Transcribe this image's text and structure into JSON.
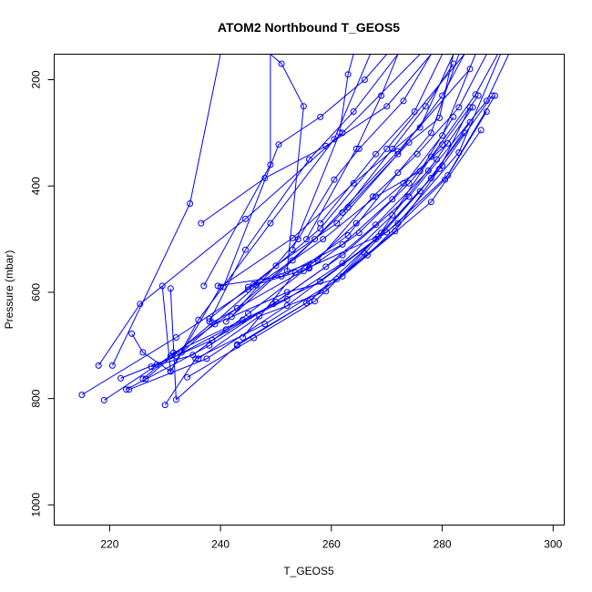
{
  "chart_data": {
    "type": "line",
    "title": "ATOM2 Northbound T_GEOS5",
    "xlabel": "T_GEOS5",
    "ylabel": "Pressure (mbar)",
    "xlim": [
      210,
      302
    ],
    "ylim": [
      1038,
      152
    ],
    "y_reversed": true,
    "xticks": [
      220,
      240,
      260,
      280,
      300
    ],
    "yticks": [
      200,
      400,
      600,
      800,
      1000
    ],
    "grid": false,
    "legend": "none",
    "series_color": "#0000ff",
    "marker": "open-circle",
    "series": [
      {
        "values": [
          [
            215.0,
            793
          ],
          [
            232.0,
            685
          ],
          [
            245.0,
            595
          ],
          [
            258.0,
            480
          ],
          [
            270.0,
            330
          ],
          [
            284.0,
            152
          ]
        ]
      },
      {
        "values": [
          [
            219.0,
            803
          ],
          [
            231.0,
            720
          ],
          [
            243.0,
            630
          ],
          [
            257.0,
            500
          ],
          [
            272.0,
            335
          ],
          [
            285.0,
            180
          ]
        ]
      },
      {
        "values": [
          [
            218.0,
            738
          ],
          [
            225.5,
            622
          ],
          [
            244.5,
            462
          ],
          [
            262.0,
            300
          ],
          [
            276.0,
            152
          ]
        ]
      },
      {
        "values": [
          [
            220.5,
            738
          ],
          [
            234.5,
            433
          ],
          [
            240.0,
            152
          ]
        ]
      },
      {
        "values": [
          [
            223.0,
            783
          ],
          [
            238.0,
            700
          ],
          [
            250.0,
            618
          ],
          [
            262.0,
            530
          ],
          [
            274.0,
            420
          ],
          [
            288.0,
            240
          ],
          [
            292.0,
            152
          ]
        ]
      },
      {
        "values": [
          [
            223.5,
            783
          ],
          [
            237.5,
            725
          ],
          [
            252.0,
            625
          ],
          [
            268.0,
            500
          ],
          [
            280.0,
            362
          ],
          [
            289.0,
            230
          ]
        ]
      },
      {
        "values": [
          [
            226.0,
            763
          ],
          [
            231.5,
            714
          ],
          [
            244.0,
            652
          ],
          [
            258.0,
            580
          ],
          [
            272.0,
            470
          ],
          [
            283.0,
            337
          ],
          [
            290.5,
            152
          ]
        ]
      },
      {
        "values": [
          [
            226.5,
            763
          ],
          [
            238.5,
            657
          ],
          [
            256.0,
            553
          ],
          [
            270.0,
            487
          ],
          [
            281.0,
            380
          ],
          [
            288.0,
            260
          ]
        ]
      },
      {
        "values": [
          [
            230.0,
            812
          ],
          [
            235.5,
            725
          ],
          [
            248.0,
            660
          ],
          [
            262.0,
            570
          ],
          [
            278.0,
            430
          ],
          [
            287.0,
            295
          ]
        ]
      },
      {
        "values": [
          [
            231.0,
            593
          ],
          [
            232.0,
            802
          ],
          [
            243.0,
            700
          ],
          [
            255.5,
            620
          ],
          [
            266.5,
            530
          ],
          [
            280.5,
            388
          ],
          [
            289.5,
            230
          ]
        ]
      },
      {
        "values": [
          [
            224.0,
            678
          ],
          [
            226.0,
            713
          ],
          [
            231.0,
            749
          ],
          [
            236.0,
            652
          ],
          [
            249.0,
            470
          ],
          [
            260.5,
            312
          ],
          [
            267.0,
            152
          ]
        ]
      },
      {
        "values": [
          [
            229.5,
            588
          ],
          [
            231.0,
            749
          ],
          [
            240.0,
            590
          ],
          [
            253.0,
            498
          ],
          [
            264.0,
            395
          ],
          [
            276.0,
            290
          ],
          [
            282.0,
            152
          ]
        ]
      },
      {
        "values": [
          [
            237.0,
            588
          ],
          [
            249.0,
            360
          ],
          [
            249.0,
            152
          ]
        ]
      },
      {
        "values": [
          [
            236.5,
            470
          ],
          [
            248.0,
            385
          ],
          [
            259.0,
            325
          ],
          [
            270.0,
            250
          ],
          [
            278.0,
            152
          ]
        ]
      },
      {
        "values": [
          [
            238.0,
            655
          ],
          [
            244.5,
            520
          ],
          [
            256.0,
            350
          ],
          [
            264.0,
            260
          ],
          [
            272.0,
            152
          ]
        ]
      },
      {
        "values": [
          [
            240.5,
            590
          ],
          [
            250.5,
            322
          ],
          [
            258.0,
            270
          ],
          [
            266.0,
            200
          ],
          [
            270.0,
            152
          ]
        ]
      },
      {
        "values": [
          [
            242.0,
            646
          ],
          [
            254.0,
            500
          ],
          [
            260.5,
            388
          ],
          [
            265.0,
            330
          ],
          [
            273.0,
            240
          ],
          [
            278.0,
            152
          ]
        ]
      },
      {
        "values": [
          [
            252.0,
            560
          ],
          [
            255.0,
            250
          ],
          [
            251.0,
            170
          ],
          [
            249.0,
            152
          ]
        ]
      },
      {
        "values": [
          [
            246.0,
            585
          ],
          [
            257.5,
            540
          ],
          [
            267.5,
            420
          ],
          [
            275.5,
            340
          ],
          [
            283.0,
            252
          ],
          [
            288.0,
            152
          ]
        ]
      },
      {
        "values": [
          [
            239.5,
            588
          ],
          [
            251.0,
            570
          ],
          [
            262.0,
            510
          ],
          [
            271.0,
            425
          ],
          [
            280.0,
            305
          ],
          [
            286.0,
            152
          ]
        ]
      },
      {
        "values": [
          [
            243.0,
            698
          ],
          [
            256.0,
            617
          ],
          [
            268.5,
            495
          ],
          [
            278.0,
            345
          ],
          [
            286.0,
            228
          ],
          [
            290.0,
            152
          ]
        ]
      },
      {
        "values": [
          [
            244.0,
            685
          ],
          [
            253.5,
            563
          ],
          [
            263.0,
            493
          ],
          [
            272.0,
            375
          ],
          [
            278.0,
            300
          ],
          [
            283.0,
            152
          ]
        ]
      },
      {
        "values": [
          [
            233.0,
            713
          ],
          [
            246.5,
            587
          ],
          [
            258.5,
            500
          ],
          [
            268.0,
            420
          ],
          [
            276.0,
            372
          ],
          [
            282.0,
            270
          ]
        ]
      },
      {
        "values": [
          [
            236.0,
            725
          ],
          [
            247.0,
            645
          ],
          [
            259.0,
            598
          ],
          [
            269.0,
            488
          ],
          [
            278.0,
            385
          ],
          [
            285.0,
            280
          ]
        ]
      },
      {
        "values": [
          [
            239.0,
            660
          ],
          [
            252.0,
            600
          ],
          [
            261.0,
            575
          ],
          [
            271.5,
            485
          ],
          [
            279.5,
            368
          ],
          [
            285.0,
            252
          ]
        ]
      },
      {
        "values": [
          [
            234.0,
            760
          ],
          [
            246.0,
            686
          ],
          [
            257.0,
            617
          ],
          [
            266.0,
            527
          ],
          [
            276.0,
            410
          ],
          [
            284.0,
            300
          ]
        ]
      },
      {
        "values": [
          [
            238.0,
            650
          ],
          [
            250.0,
            550
          ],
          [
            261.0,
            470
          ],
          [
            272.0,
            340
          ],
          [
            280.0,
            230
          ],
          [
            284.0,
            152
          ]
        ]
      },
      {
        "values": [
          [
            241.0,
            655
          ],
          [
            253.0,
            540
          ],
          [
            263.0,
            440
          ],
          [
            274.0,
            318
          ],
          [
            279.5,
            272
          ],
          [
            282.0,
            152
          ]
        ]
      },
      {
        "values": [
          [
            227.5,
            740
          ],
          [
            235.0,
            718
          ],
          [
            245.0,
            640
          ],
          [
            255.0,
            560
          ],
          [
            264.5,
            470
          ],
          [
            273.0,
            395
          ],
          [
            281.0,
            320
          ]
        ]
      },
      {
        "values": [
          [
            222.0,
            762
          ],
          [
            232.0,
            720
          ],
          [
            241.0,
            670
          ],
          [
            252.0,
            613
          ],
          [
            262.0,
            545
          ],
          [
            271.0,
            455
          ],
          [
            279.0,
            350
          ]
        ]
      },
      {
        "values": [
          [
            228.5,
            736
          ],
          [
            238.5,
            690
          ],
          [
            249.5,
            622
          ],
          [
            259.0,
            552
          ],
          [
            268.0,
            473
          ],
          [
            277.5,
            371
          ],
          [
            285.5,
            252
          ]
        ]
      },
      {
        "values": [
          [
            245.0,
            590
          ],
          [
            256.0,
            555
          ],
          [
            265.0,
            488
          ],
          [
            274.0,
            395
          ],
          [
            280.0,
            322
          ],
          [
            286.5,
            230
          ]
        ]
      },
      {
        "values": [
          [
            253.0,
            520
          ],
          [
            261.5,
            300
          ],
          [
            263.0,
            190
          ],
          [
            264.0,
            152
          ]
        ]
      },
      {
        "values": [
          [
            255.5,
            500
          ],
          [
            264.5,
            330
          ],
          [
            269.0,
            230
          ],
          [
            272.0,
            152
          ]
        ]
      },
      {
        "values": [
          [
            258.0,
            470
          ],
          [
            268.0,
            340
          ],
          [
            275.0,
            260
          ],
          [
            280.0,
            152
          ]
        ]
      },
      {
        "values": [
          [
            262.0,
            450
          ],
          [
            271.0,
            330
          ],
          [
            277.0,
            250
          ],
          [
            282.0,
            170
          ]
        ]
      }
    ]
  }
}
